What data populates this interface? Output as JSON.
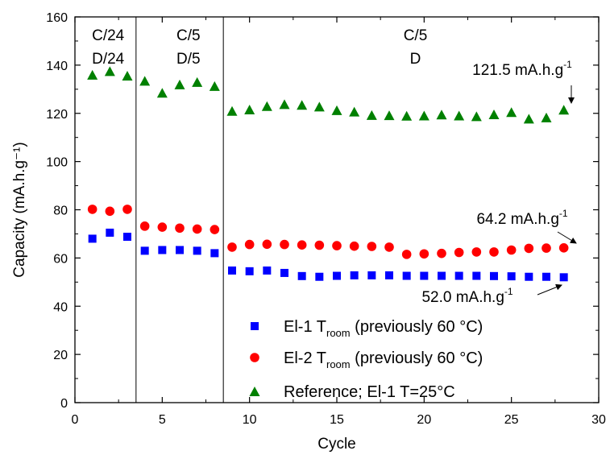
{
  "chart_data": {
    "type": "scatter",
    "xlabel": "Cycle",
    "ylabel": "Capacity (mA.h.g⁻¹)",
    "xlim": [
      0,
      30
    ],
    "ylim": [
      0,
      160
    ],
    "xticks": [
      0,
      5,
      10,
      15,
      20,
      25,
      30
    ],
    "yticks": [
      0,
      20,
      40,
      60,
      80,
      100,
      120,
      140,
      160
    ],
    "grid": false,
    "legend_position": "bottom-right",
    "series": [
      {
        "name": "El-1 T_room (previously 60 °C)",
        "label_parts": [
          "El-1 T",
          "room",
          " (previously 60 °C)"
        ],
        "marker": "square",
        "color": "#0000ff",
        "x": [
          1,
          2,
          3,
          4,
          5,
          6,
          7,
          8,
          9,
          10,
          11,
          12,
          13,
          14,
          15,
          16,
          17,
          18,
          19,
          20,
          21,
          22,
          23,
          24,
          25,
          26,
          27,
          28
        ],
        "y": [
          68,
          70.5,
          68.8,
          63,
          63.3,
          63.3,
          63,
          62,
          54.8,
          54.5,
          54.8,
          53.8,
          52.5,
          52.2,
          52.6,
          52.8,
          52.8,
          52.8,
          52.6,
          52.6,
          52.6,
          52.6,
          52.6,
          52.5,
          52.4,
          52.2,
          52.2,
          52.0
        ]
      },
      {
        "name": "El-2 T_room (previously 60 °C)",
        "label_parts": [
          "El-2 T",
          "room",
          " (previously 60 °C)"
        ],
        "marker": "circle",
        "color": "#ff0000",
        "x": [
          1,
          2,
          3,
          4,
          5,
          6,
          7,
          8,
          9,
          10,
          11,
          12,
          13,
          14,
          15,
          16,
          17,
          18,
          19,
          20,
          21,
          22,
          23,
          24,
          25,
          26,
          27,
          28
        ],
        "y": [
          80.2,
          79.4,
          80.2,
          73.2,
          72.8,
          72.4,
          72,
          71.8,
          64.5,
          65.6,
          65.7,
          65.6,
          65.4,
          65.3,
          65.1,
          64.9,
          64.8,
          64.5,
          61.5,
          61.7,
          61.9,
          62.3,
          62.5,
          62.5,
          63.3,
          64,
          64.1,
          64.2
        ]
      },
      {
        "name": "Reference; El-1 T=25°C",
        "label_parts": [
          "Reference; El-1 T=25°C",
          "",
          ""
        ],
        "marker": "triangle",
        "color": "#008000",
        "x": [
          1,
          2,
          3,
          4,
          5,
          6,
          7,
          8,
          9,
          10,
          11,
          12,
          13,
          14,
          15,
          16,
          17,
          18,
          19,
          20,
          21,
          22,
          23,
          24,
          25,
          26,
          27,
          28
        ],
        "y": [
          136,
          137.5,
          135.6,
          133.5,
          128.5,
          132,
          133,
          131.3,
          121,
          121.6,
          123,
          123.8,
          123.5,
          122.8,
          121.3,
          120.7,
          119.3,
          119.2,
          119,
          119.1,
          119.5,
          119.1,
          118.8,
          119.6,
          120.5,
          117.8,
          118.3,
          121.5
        ]
      }
    ],
    "vertical_lines": [
      3.5,
      8.5
    ],
    "regions": [
      {
        "line1": "C/24",
        "line2": "D/24",
        "x": 1.9
      },
      {
        "line1": "C/5",
        "line2": "D/5",
        "x": 6.5
      },
      {
        "line1": "C/5",
        "line2": "D",
        "x": 19.5
      }
    ],
    "annotations": [
      {
        "text": "121.5 mA.h.g",
        "sup": "-1",
        "series": 2,
        "point": 24
      },
      {
        "text": "64.2 mA.h.g",
        "sup": "-1",
        "series": 1,
        "point": 27
      },
      {
        "text": "52.0 mA.h.g",
        "sup": "-1",
        "series": 0,
        "point": 27
      }
    ]
  }
}
